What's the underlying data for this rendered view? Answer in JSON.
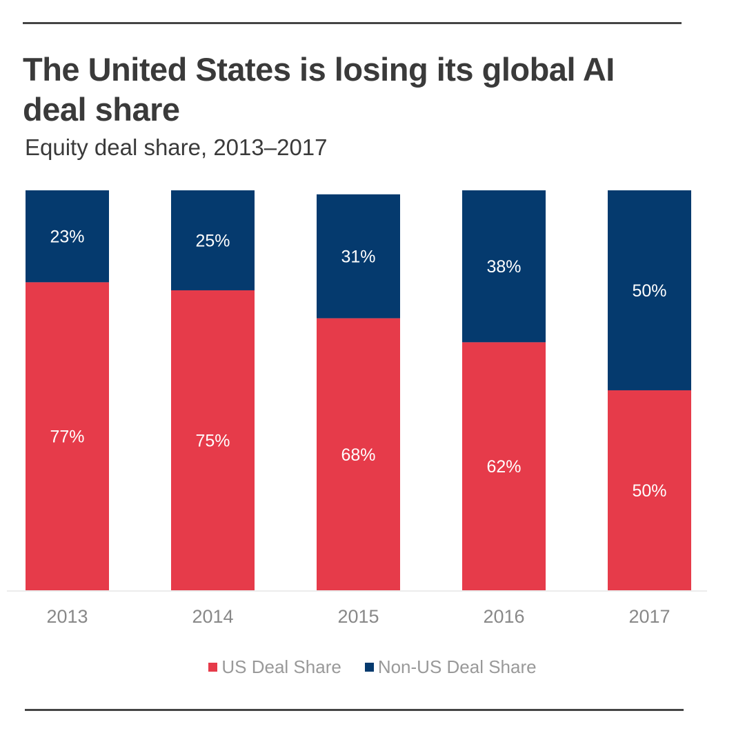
{
  "header": {
    "title": "The United States is losing its global AI deal share",
    "subtitle": "Equity deal share, 2013–2017"
  },
  "colors": {
    "us": "#e63b4a",
    "non_us": "#053a6e",
    "baseline": "#e6e6e6"
  },
  "chart_data": {
    "type": "bar",
    "stacked": true,
    "title": "The United States is losing its global AI deal share",
    "subtitle": "Equity deal share, 2013–2017",
    "xlabel": "",
    "ylabel": "",
    "categories": [
      "2013",
      "2014",
      "2015",
      "2016",
      "2017"
    ],
    "series": [
      {
        "name": "US Deal Share",
        "values": [
          77,
          75,
          68,
          62,
          50
        ],
        "labels": [
          "77%",
          "75%",
          "68%",
          "62%",
          "50%"
        ],
        "color": "#e63b4a"
      },
      {
        "name": "Non-US Deal Share",
        "values": [
          23,
          25,
          31,
          38,
          50
        ],
        "labels": [
          "23%",
          "25%",
          "31%",
          "38%",
          "50%"
        ],
        "color": "#053a6e"
      }
    ],
    "ylim": [
      0,
      100
    ],
    "grid": false,
    "legend": "bottom-center"
  }
}
